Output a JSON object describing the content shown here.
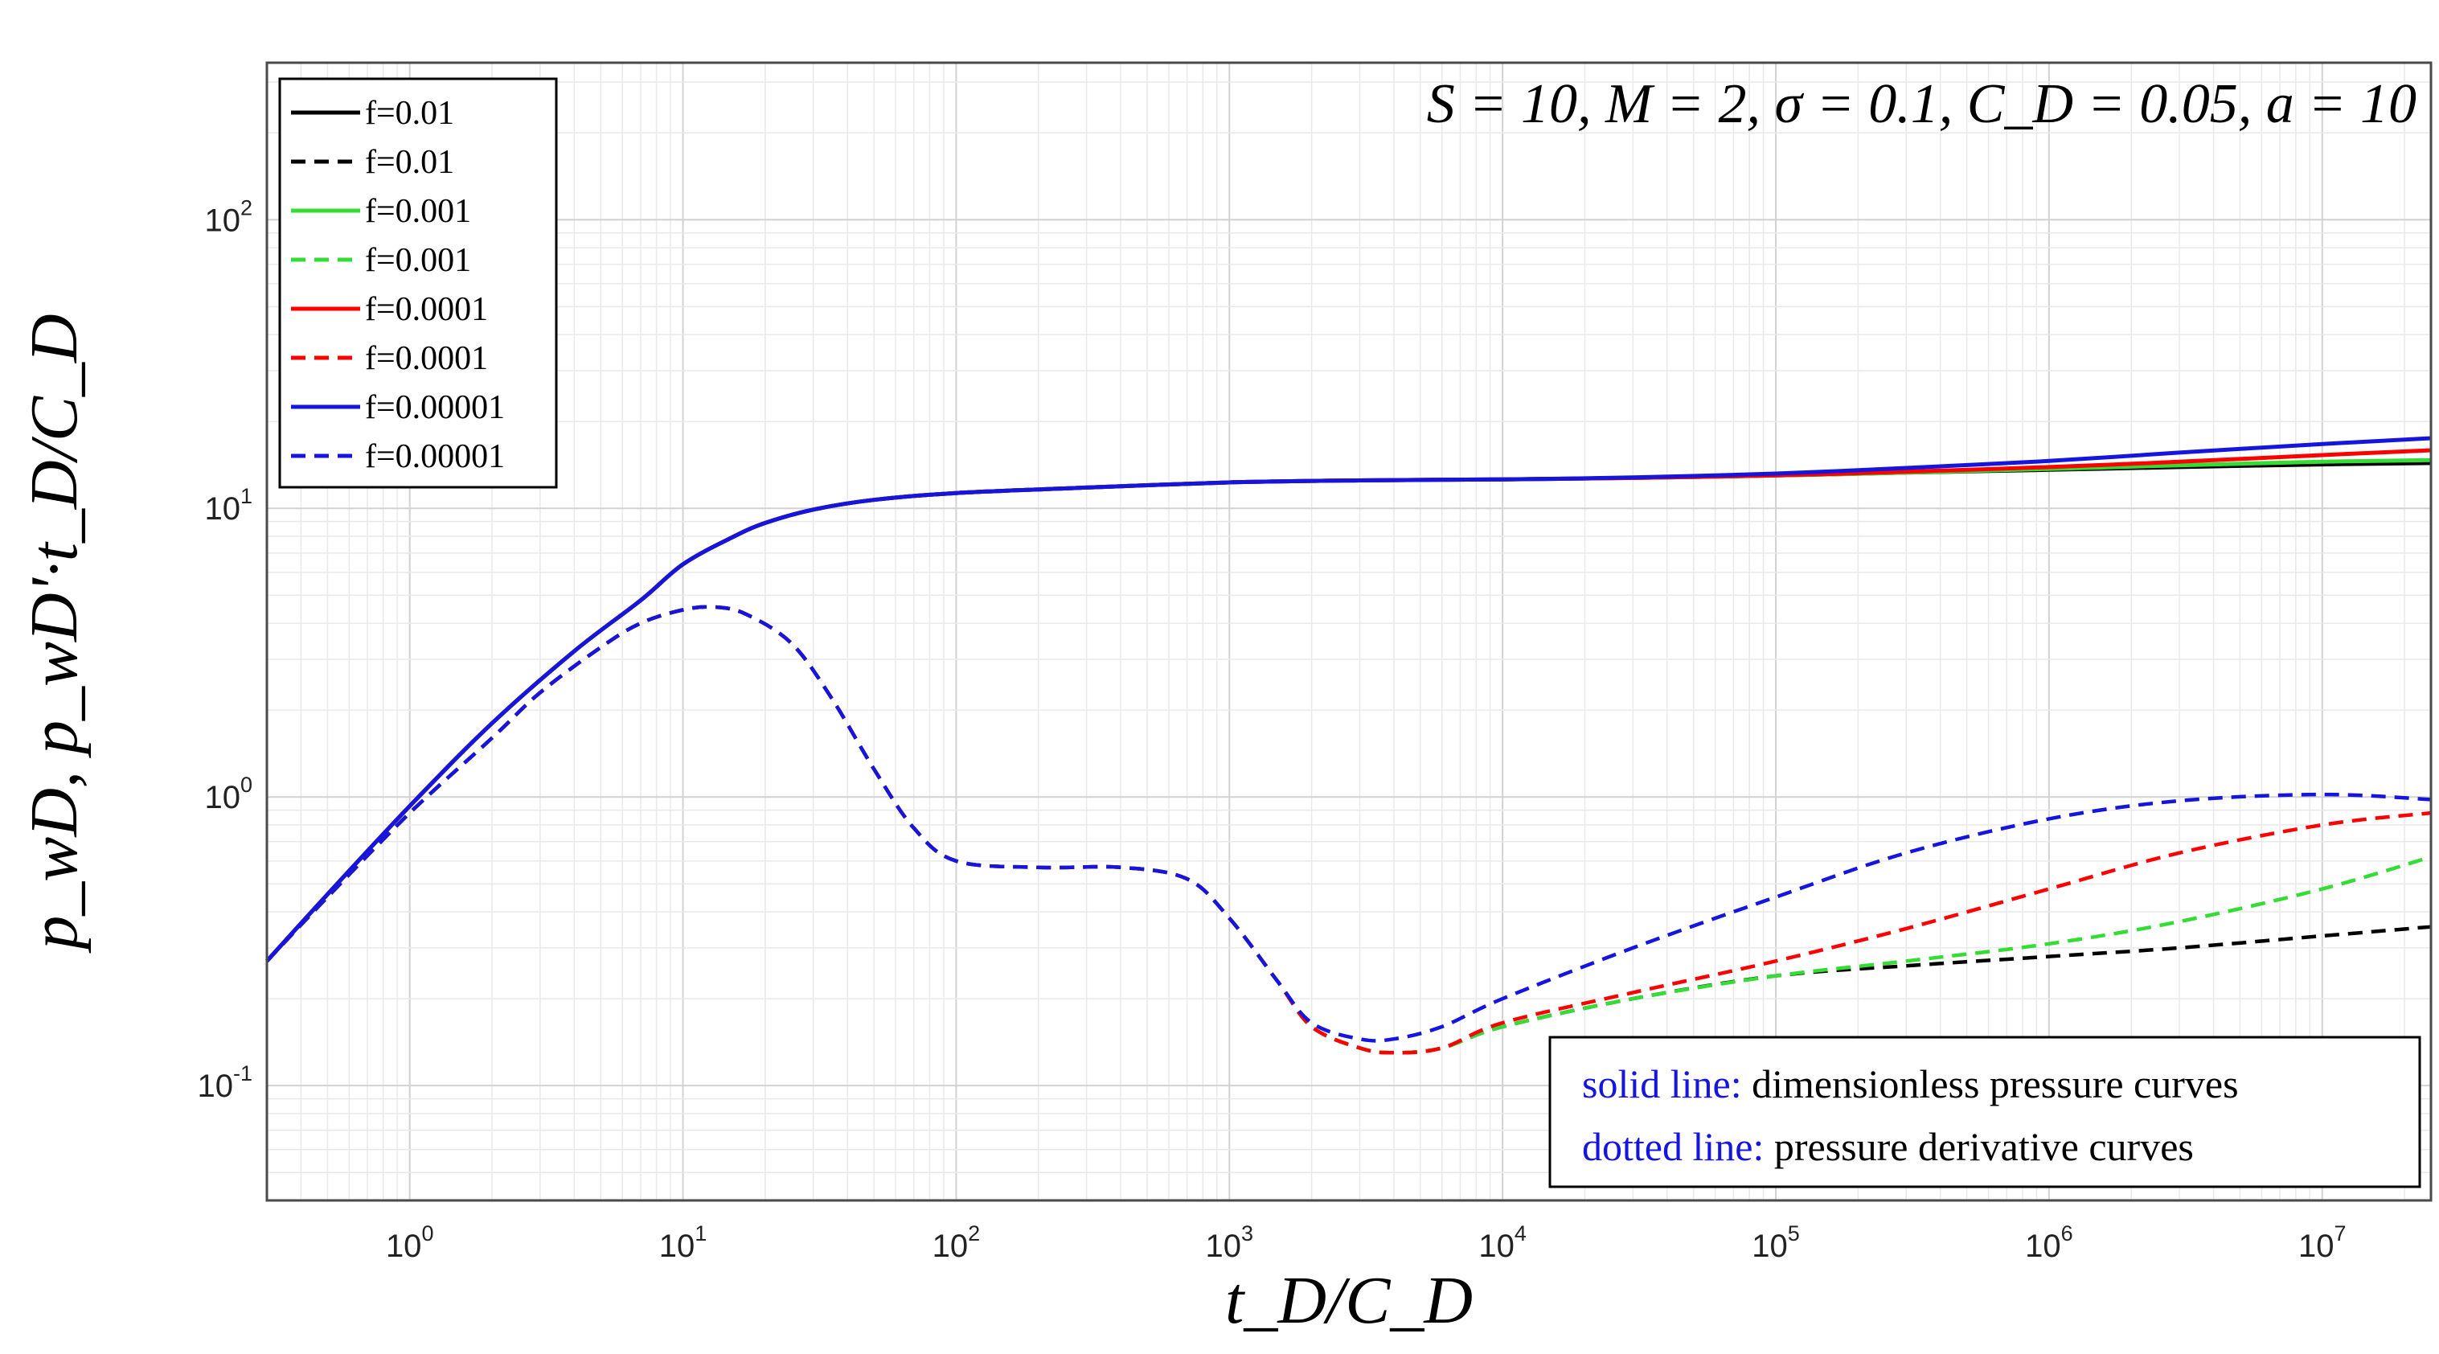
{
  "chart_data": {
    "type": "line",
    "title": "",
    "annotation": "S = 10,   M = 2,   σ = 0.1,   C_D = 0.05, a = 10",
    "xlabel": "t_D/C_D",
    "ylabel": "p_wD,  p_wD'·t_D/C_D",
    "x_scale": "log",
    "y_scale": "log",
    "xlim": [
      0.3,
      25000000
    ],
    "ylim": [
      0.04,
      350
    ],
    "x_ticks": [
      {
        "base": "10",
        "exp": "0"
      },
      {
        "base": "10",
        "exp": "1"
      },
      {
        "base": "10",
        "exp": "2"
      },
      {
        "base": "10",
        "exp": "3"
      },
      {
        "base": "10",
        "exp": "4"
      },
      {
        "base": "10",
        "exp": "5"
      },
      {
        "base": "10",
        "exp": "6"
      },
      {
        "base": "10",
        "exp": "7"
      }
    ],
    "y_ticks": [
      {
        "base": "10",
        "exp": "-1"
      },
      {
        "base": "10",
        "exp": "0"
      },
      {
        "base": "10",
        "exp": "1"
      },
      {
        "base": "10",
        "exp": "2"
      }
    ],
    "grid": true,
    "legend": {
      "placement": "top-left",
      "entries": [
        {
          "label": "f=0.01",
          "color": "#000000",
          "style": "solid"
        },
        {
          "label": "f=0.01",
          "color": "#000000",
          "style": "dashed"
        },
        {
          "label": "f=0.001",
          "color": "#33dd33",
          "style": "solid"
        },
        {
          "label": "f=0.001",
          "color": "#33dd33",
          "style": "dashed"
        },
        {
          "label": "f=0.0001",
          "color": "#ff0000",
          "style": "solid"
        },
        {
          "label": "f=0.0001",
          "color": "#ff0000",
          "style": "dashed"
        },
        {
          "label": "f=0.00001",
          "color": "#1515dd",
          "style": "solid"
        },
        {
          "label": "f=0.00001",
          "color": "#1515dd",
          "style": "dashed"
        }
      ]
    },
    "note": {
      "placement": "bottom-right",
      "lines": [
        {
          "key": "solid line:",
          "text": "dimensionless pressure curves"
        },
        {
          "key": "dotted line:",
          "text": "pressure derivative curves"
        }
      ],
      "key_color": "#1515dd"
    },
    "series": [
      {
        "name": "f=0.01",
        "kind": "pressure",
        "color": "#000000",
        "dash": false,
        "x": [
          0.3,
          0.5,
          1,
          2,
          4,
          7,
          10,
          15,
          20,
          30,
          50,
          100,
          300,
          1000,
          3000,
          10000,
          30000,
          100000,
          300000,
          1000000,
          3000000,
          10000000,
          25000000
        ],
        "y": [
          0.27,
          0.46,
          0.93,
          1.8,
          3.2,
          4.8,
          6.4,
          7.9,
          8.9,
          9.9,
          10.7,
          11.3,
          11.8,
          12.3,
          12.5,
          12.6,
          12.75,
          13.0,
          13.3,
          13.6,
          13.9,
          14.2,
          14.35
        ]
      },
      {
        "name": "f=0.001",
        "kind": "pressure",
        "color": "#33dd33",
        "dash": false,
        "x": [
          0.3,
          0.5,
          1,
          2,
          4,
          7,
          10,
          15,
          20,
          30,
          50,
          100,
          300,
          1000,
          3000,
          10000,
          30000,
          100000,
          300000,
          1000000,
          3000000,
          10000000,
          25000000
        ],
        "y": [
          0.27,
          0.46,
          0.93,
          1.8,
          3.2,
          4.8,
          6.4,
          7.9,
          8.9,
          9.9,
          10.7,
          11.3,
          11.8,
          12.3,
          12.5,
          12.6,
          12.75,
          13.0,
          13.3,
          13.7,
          14.1,
          14.5,
          14.7
        ]
      },
      {
        "name": "f=0.0001",
        "kind": "pressure",
        "color": "#ff0000",
        "dash": false,
        "x": [
          0.3,
          0.5,
          1,
          2,
          4,
          7,
          10,
          15,
          20,
          30,
          50,
          100,
          300,
          1000,
          3000,
          10000,
          30000,
          100000,
          300000,
          1000000,
          3000000,
          10000000,
          25000000
        ],
        "y": [
          0.27,
          0.46,
          0.93,
          1.8,
          3.2,
          4.8,
          6.4,
          7.9,
          8.9,
          9.9,
          10.7,
          11.3,
          11.8,
          12.3,
          12.5,
          12.6,
          12.75,
          13.0,
          13.4,
          13.9,
          14.5,
          15.3,
          15.9
        ]
      },
      {
        "name": "f=0.00001",
        "kind": "pressure",
        "color": "#1515dd",
        "dash": false,
        "x": [
          0.3,
          0.5,
          1,
          2,
          4,
          7,
          10,
          15,
          20,
          30,
          50,
          100,
          300,
          1000,
          3000,
          10000,
          30000,
          100000,
          300000,
          1000000,
          3000000,
          10000000,
          25000000
        ],
        "y": [
          0.27,
          0.46,
          0.93,
          1.8,
          3.2,
          4.8,
          6.4,
          7.9,
          8.9,
          9.9,
          10.7,
          11.3,
          11.8,
          12.3,
          12.5,
          12.6,
          12.8,
          13.2,
          13.8,
          14.6,
          15.6,
          16.7,
          17.5
        ]
      },
      {
        "name": "f=0.01",
        "kind": "derivative",
        "color": "#000000",
        "dash": true,
        "x": [
          0.3,
          0.5,
          1,
          2,
          3,
          5,
          7,
          10,
          13,
          17,
          25,
          35,
          50,
          70,
          100,
          200,
          400,
          700,
          1000,
          1500,
          2000,
          3000,
          4000,
          6000,
          10000,
          30000,
          100000,
          300000,
          1000000,
          3000000,
          10000000,
          25000000
        ],
        "y": [
          0.27,
          0.45,
          0.88,
          1.6,
          2.3,
          3.3,
          4.0,
          4.45,
          4.55,
          4.3,
          3.4,
          2.2,
          1.25,
          0.78,
          0.6,
          0.57,
          0.57,
          0.52,
          0.38,
          0.23,
          0.16,
          0.135,
          0.13,
          0.135,
          0.16,
          0.2,
          0.24,
          0.26,
          0.28,
          0.3,
          0.33,
          0.355
        ]
      },
      {
        "name": "f=0.001",
        "kind": "derivative",
        "color": "#33dd33",
        "dash": true,
        "x": [
          0.3,
          0.5,
          1,
          2,
          3,
          5,
          7,
          10,
          13,
          17,
          25,
          35,
          50,
          70,
          100,
          200,
          400,
          700,
          1000,
          1500,
          2000,
          3000,
          4000,
          6000,
          10000,
          30000,
          100000,
          300000,
          1000000,
          3000000,
          10000000,
          25000000
        ],
        "y": [
          0.27,
          0.45,
          0.88,
          1.6,
          2.3,
          3.3,
          4.0,
          4.45,
          4.55,
          4.3,
          3.4,
          2.2,
          1.25,
          0.78,
          0.6,
          0.57,
          0.57,
          0.52,
          0.38,
          0.23,
          0.16,
          0.135,
          0.13,
          0.135,
          0.16,
          0.2,
          0.24,
          0.27,
          0.31,
          0.37,
          0.48,
          0.62
        ]
      },
      {
        "name": "f=0.0001",
        "kind": "derivative",
        "color": "#ff0000",
        "dash": true,
        "x": [
          0.3,
          0.5,
          1,
          2,
          3,
          5,
          7,
          10,
          13,
          17,
          25,
          35,
          50,
          70,
          100,
          200,
          400,
          700,
          1000,
          1500,
          2000,
          3000,
          4000,
          6000,
          10000,
          30000,
          100000,
          300000,
          1000000,
          3000000,
          10000000,
          25000000
        ],
        "y": [
          0.27,
          0.45,
          0.88,
          1.6,
          2.3,
          3.3,
          4.0,
          4.45,
          4.55,
          4.3,
          3.4,
          2.2,
          1.25,
          0.78,
          0.6,
          0.57,
          0.57,
          0.52,
          0.38,
          0.23,
          0.16,
          0.135,
          0.13,
          0.135,
          0.165,
          0.21,
          0.27,
          0.35,
          0.48,
          0.64,
          0.8,
          0.88
        ]
      },
      {
        "name": "f=0.00001",
        "kind": "derivative",
        "color": "#1515dd",
        "dash": true,
        "x": [
          0.3,
          0.5,
          1,
          2,
          3,
          5,
          7,
          10,
          13,
          17,
          25,
          35,
          50,
          70,
          100,
          200,
          400,
          700,
          1000,
          1500,
          2000,
          3000,
          4000,
          6000,
          10000,
          30000,
          100000,
          300000,
          1000000,
          3000000,
          10000000,
          25000000
        ],
        "y": [
          0.27,
          0.45,
          0.88,
          1.6,
          2.3,
          3.3,
          4.0,
          4.45,
          4.55,
          4.3,
          3.4,
          2.2,
          1.25,
          0.78,
          0.6,
          0.57,
          0.57,
          0.52,
          0.38,
          0.23,
          0.165,
          0.145,
          0.145,
          0.16,
          0.2,
          0.3,
          0.45,
          0.64,
          0.84,
          0.97,
          1.02,
          0.98
        ]
      }
    ]
  }
}
